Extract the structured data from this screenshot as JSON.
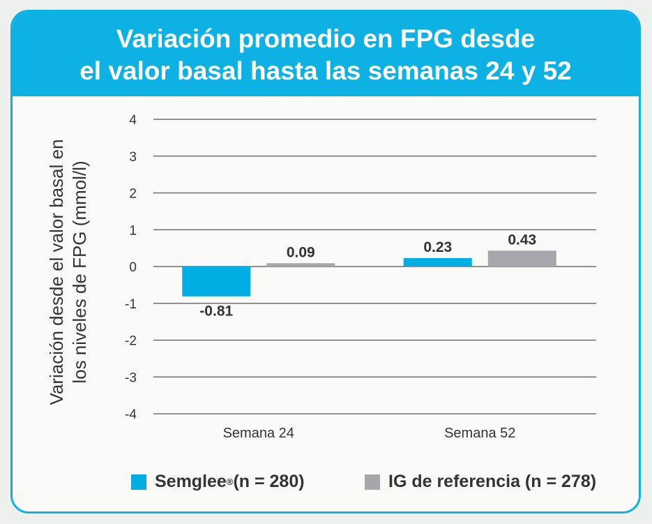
{
  "chart_data": {
    "type": "bar",
    "title": "Variación promedio en FPG desde el valor basal hasta las semanas 24 y 52",
    "title_lines": [
      "Variación promedio en FPG desde",
      "el valor basal hasta las semanas 24 y 52"
    ],
    "ylabel_lines": [
      "Variación desde el valor basal en",
      "los niveles de FPG (mmol/l)"
    ],
    "categories": [
      "Semana 24",
      "Semana 52"
    ],
    "ylim": [
      -4,
      4
    ],
    "yticks": [
      4,
      3,
      2,
      1,
      0,
      -1,
      -2,
      -3,
      -4
    ],
    "grid": true,
    "legend_position": "bottom",
    "series": [
      {
        "name": "Semglee",
        "sup": "®",
        "n_label": " (n = 280)",
        "color": "#00aee4",
        "values": [
          -0.81,
          0.23
        ],
        "labels": [
          "-0.81",
          "0.23"
        ]
      },
      {
        "name": "IG de referencia (n = 278)",
        "color": "#a6a7aa",
        "values": [
          0.09,
          0.43
        ],
        "labels": [
          "0.09",
          "0.43"
        ]
      }
    ]
  }
}
